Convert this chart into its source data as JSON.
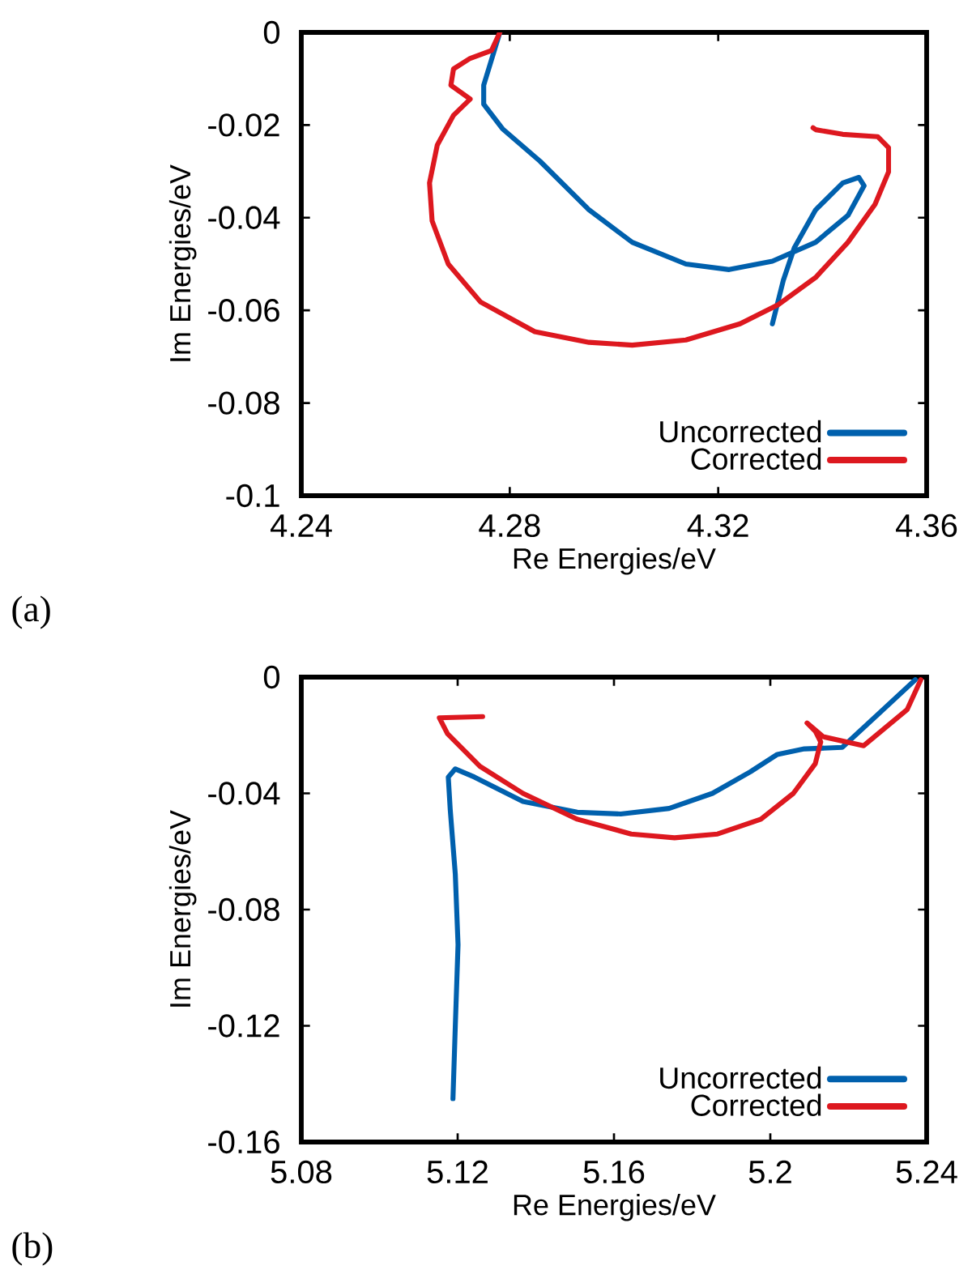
{
  "chart_data": [
    {
      "type": "line",
      "xlabel": "Re Energies/eV",
      "ylabel": "Im Energies/eV",
      "annotations": [
        "(a)"
      ],
      "xlim": [
        4.24,
        4.36
      ],
      "ylim": [
        -0.1,
        0
      ],
      "xticks": [
        4.24,
        4.28,
        4.32,
        4.36
      ],
      "yticks": [
        -0.1,
        -0.08,
        -0.06,
        -0.04,
        -0.02,
        0
      ],
      "grid": false,
      "legend": "bottom right",
      "marker": "none",
      "line_style": "solid",
      "series": [
        {
          "name": "Uncorrected",
          "color": "#0060ad",
          "x": [
            4.2781,
            4.275,
            4.275,
            4.2786,
            4.2858,
            4.2952,
            4.3035,
            4.3138,
            4.3221,
            4.3304,
            4.3387,
            4.3449,
            4.348,
            4.347,
            4.3439,
            4.3387,
            4.3346,
            4.3325,
            4.3304
          ],
          "values": [
            0,
            -0.0114,
            -0.0155,
            -0.0208,
            -0.0278,
            -0.0383,
            -0.0453,
            -0.05,
            -0.0512,
            -0.0494,
            -0.0453,
            -0.0395,
            -0.0331,
            -0.0313,
            -0.0325,
            -0.0383,
            -0.0465,
            -0.0535,
            -0.0629
          ]
        },
        {
          "name": "Corrected",
          "color": "#dd181f",
          "x": [
            4.2781,
            4.2765,
            4.2724,
            4.2692,
            4.2687,
            4.2724,
            4.2692,
            4.2661,
            4.2646,
            4.2651,
            4.2682,
            4.2744,
            4.2848,
            4.2952,
            4.3035,
            4.3138,
            4.3242,
            4.3315,
            4.3387,
            4.3449,
            4.3501,
            4.3527,
            4.3527,
            4.3506,
            4.3439,
            4.3387,
            4.3382
          ],
          "values": [
            0,
            -0.0039,
            -0.0056,
            -0.0079,
            -0.0114,
            -0.0144,
            -0.0179,
            -0.0243,
            -0.0325,
            -0.0407,
            -0.05,
            -0.0582,
            -0.0646,
            -0.0669,
            -0.0675,
            -0.0664,
            -0.0629,
            -0.0588,
            -0.0529,
            -0.0453,
            -0.0371,
            -0.0301,
            -0.0249,
            -0.0225,
            -0.022,
            -0.021,
            -0.0206
          ]
        }
      ]
    },
    {
      "type": "line",
      "xlabel": "Re Energies/eV",
      "ylabel": "Im Energies/eV",
      "annotations": [
        "(b)"
      ],
      "xlim": [
        5.08,
        5.24
      ],
      "ylim": [
        -0.16,
        0
      ],
      "xticks": [
        5.08,
        5.12,
        5.16,
        5.2,
        5.24
      ],
      "yticks": [
        -0.16,
        -0.12,
        -0.08,
        -0.04,
        0
      ],
      "grid": false,
      "legend": "bottom right",
      "marker": "none",
      "line_style": "solid",
      "series": [
        {
          "name": "Uncorrected",
          "color": "#0060ad",
          "x": [
            5.1188,
            5.1194,
            5.1201,
            5.1194,
            5.1181,
            5.1176,
            5.1194,
            5.1243,
            5.1367,
            5.1506,
            5.1617,
            5.1741,
            5.1852,
            5.1949,
            5.2018,
            5.2087,
            5.2184,
            5.2281,
            5.2371
          ],
          "values": [
            -0.1451,
            -0.12,
            -0.0921,
            -0.0679,
            -0.0456,
            -0.0344,
            -0.0316,
            -0.0344,
            -0.0428,
            -0.0465,
            -0.0471,
            -0.0452,
            -0.04,
            -0.0326,
            -0.0266,
            -0.0247,
            -0.0242,
            -0.0121,
            -0.0009
          ]
        },
        {
          "name": "Corrected",
          "color": "#dd181f",
          "x": [
            5.1264,
            5.1153,
            5.1174,
            5.1257,
            5.1367,
            5.1506,
            5.1644,
            5.1755,
            5.1865,
            5.1976,
            5.2059,
            5.2115,
            5.2129,
            5.2115,
            5.2094,
            5.2135,
            5.2239,
            5.235,
            5.2385
          ],
          "values": [
            -0.0136,
            -0.014,
            -0.0195,
            -0.0307,
            -0.04,
            -0.0489,
            -0.054,
            -0.0553,
            -0.054,
            -0.0489,
            -0.04,
            -0.0298,
            -0.0223,
            -0.0186,
            -0.0158,
            -0.0205,
            -0.0236,
            -0.0112,
            -0.0009
          ]
        }
      ]
    }
  ]
}
